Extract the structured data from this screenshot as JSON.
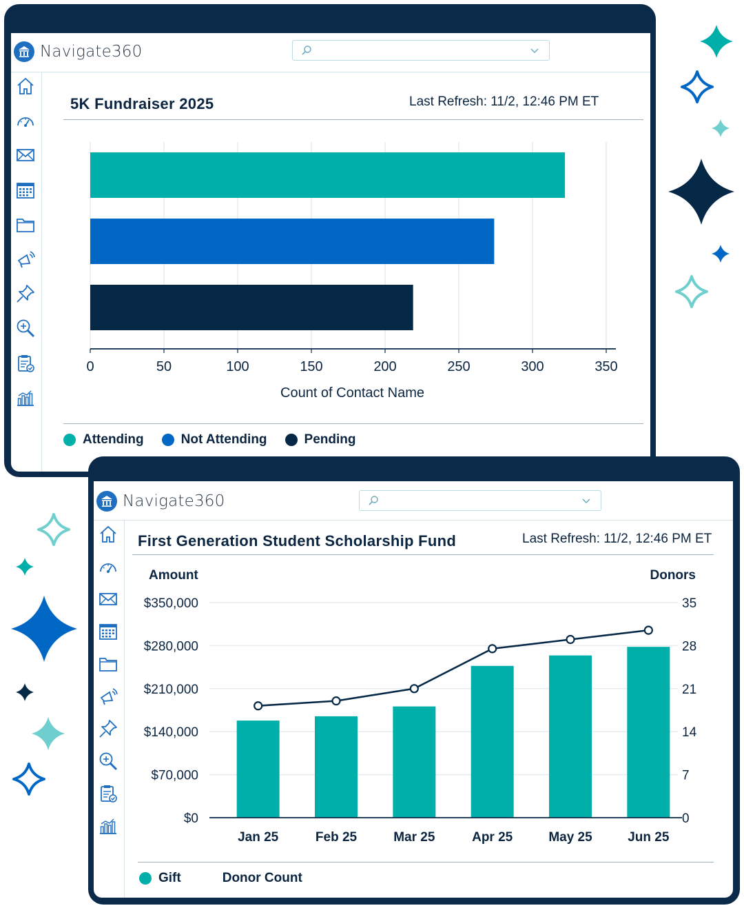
{
  "brand": {
    "name": "Navigate360"
  },
  "colors": {
    "teal": "#00afaa",
    "blue": "#0067c5",
    "navy": "#062847",
    "frame": "#0b2a4a"
  },
  "sidebar_icons": [
    "home-icon",
    "dashboard-gauge-icon",
    "mail-icon",
    "calendar-icon",
    "folder-icon",
    "megaphone-icon",
    "pin-icon",
    "zoom-search-icon",
    "clipboard-check-icon",
    "bar-chart-icon"
  ],
  "panel1": {
    "title": "5K Fundraiser 2025",
    "refresh": "Last Refresh: 11/2, 12:46 PM ET",
    "legend": [
      {
        "label": "Attending",
        "color": "#00afaa"
      },
      {
        "label": "Not Attending",
        "color": "#0067c5"
      },
      {
        "label": "Pending",
        "color": "#062847"
      }
    ]
  },
  "panel2": {
    "title": "First Generation Student Scholarship Fund",
    "refresh": "Last Refresh: 11/2, 12:46 PM ET",
    "legend": [
      {
        "label": "Gift",
        "color": "#00afaa"
      },
      {
        "label": "Donor Count",
        "color": ""
      }
    ]
  },
  "chart_data": [
    {
      "type": "bar",
      "orientation": "horizontal",
      "categories": [
        "Attending",
        "Not Attending",
        "Pending"
      ],
      "values": [
        322,
        274,
        219
      ],
      "colors": [
        "#00afaa",
        "#0067c5",
        "#062847"
      ],
      "xlabel": "Count of Contact Name",
      "xlim": [
        0,
        350
      ],
      "xticks": [
        "0",
        "50",
        "100",
        "150",
        "200",
        "250",
        "300",
        "350"
      ],
      "grid": true
    },
    {
      "type": "bar",
      "categories": [
        "Jan 25",
        "Feb 25",
        "Mar 25",
        "Apr 25",
        "May 25",
        "Jun 25"
      ],
      "series": [
        {
          "name": "Gift",
          "type": "bar",
          "axis": "left",
          "values": [
            158000,
            165000,
            181000,
            247000,
            264000,
            278000
          ],
          "color": "#00afaa"
        },
        {
          "name": "Donor Count",
          "type": "line",
          "axis": "right",
          "values": [
            18.2,
            19.0,
            21.0,
            27.5,
            29.0,
            30.5
          ],
          "color": "#062847"
        }
      ],
      "ylabel_left": "Amount",
      "ylabel_right": "Donors",
      "ylim_left": [
        0,
        350000
      ],
      "ylim_right": [
        0,
        35
      ],
      "yticks_left": [
        "$0",
        "$70,000",
        "$140,000",
        "$210,000",
        "$280,000",
        "$350,000"
      ],
      "yticks_right": [
        "0",
        "7",
        "14",
        "21",
        "28",
        "35"
      ],
      "grid": true
    }
  ]
}
